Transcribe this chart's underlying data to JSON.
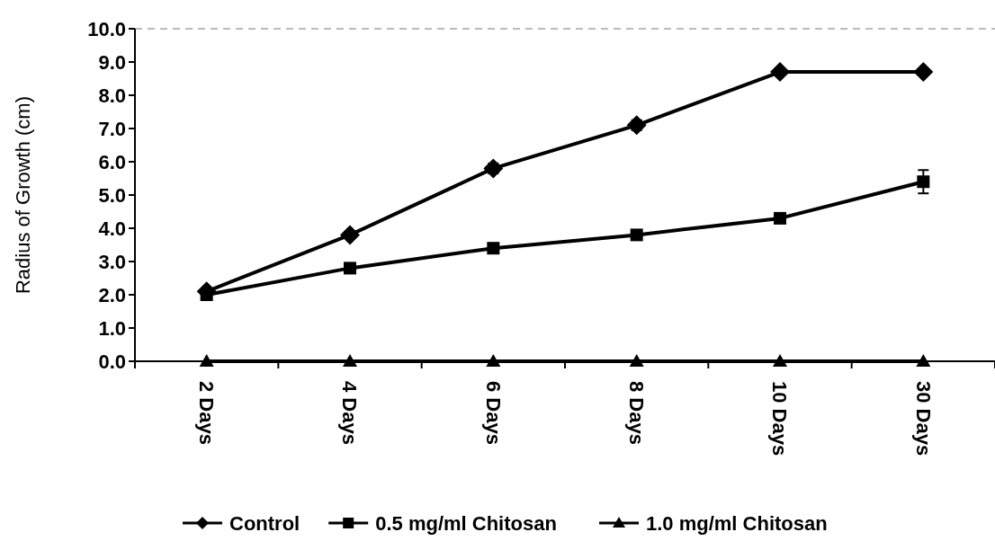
{
  "chart_data": {
    "type": "line",
    "ylabel": "Radius of Growth (cm)",
    "categories": [
      "2 Days",
      "4 Days",
      "6 Days",
      "8 Days",
      "10 Days",
      "30 Days"
    ],
    "series": [
      {
        "name": "Control",
        "color": "#000000",
        "marker": "diamond",
        "values": [
          2.1,
          3.8,
          5.8,
          7.1,
          8.7,
          8.7
        ],
        "errors": [
          null,
          0.1,
          0.15,
          0.15,
          null,
          null
        ]
      },
      {
        "name": "0.5 mg/ml Chitosan",
        "color": "#000000",
        "marker": "square",
        "values": [
          2.0,
          2.8,
          3.4,
          3.8,
          4.3,
          5.4
        ],
        "errors": [
          0.15,
          null,
          null,
          null,
          null,
          0.35
        ]
      },
      {
        "name": "1.0 mg/ml Chitosan",
        "color": "#000000",
        "marker": "triangle",
        "values": [
          0,
          0,
          0,
          0,
          0,
          0
        ]
      }
    ],
    "ylim": [
      0,
      10
    ],
    "yticks": [
      {
        "value": 0,
        "label": "0.0"
      },
      {
        "value": 1,
        "label": "1.0"
      },
      {
        "value": 2,
        "label": "2.0"
      },
      {
        "value": 3,
        "label": "3.0"
      },
      {
        "value": 4,
        "label": "4.0"
      },
      {
        "value": 5,
        "label": "5.0"
      },
      {
        "value": 6,
        "label": "6.0"
      },
      {
        "value": 7,
        "label": "7.0"
      },
      {
        "value": 8,
        "label": "8.0"
      },
      {
        "value": 9,
        "label": "9.0"
      },
      {
        "value": 10,
        "label": "10.0"
      }
    ],
    "legend": "bottom",
    "line_style": "solid"
  }
}
